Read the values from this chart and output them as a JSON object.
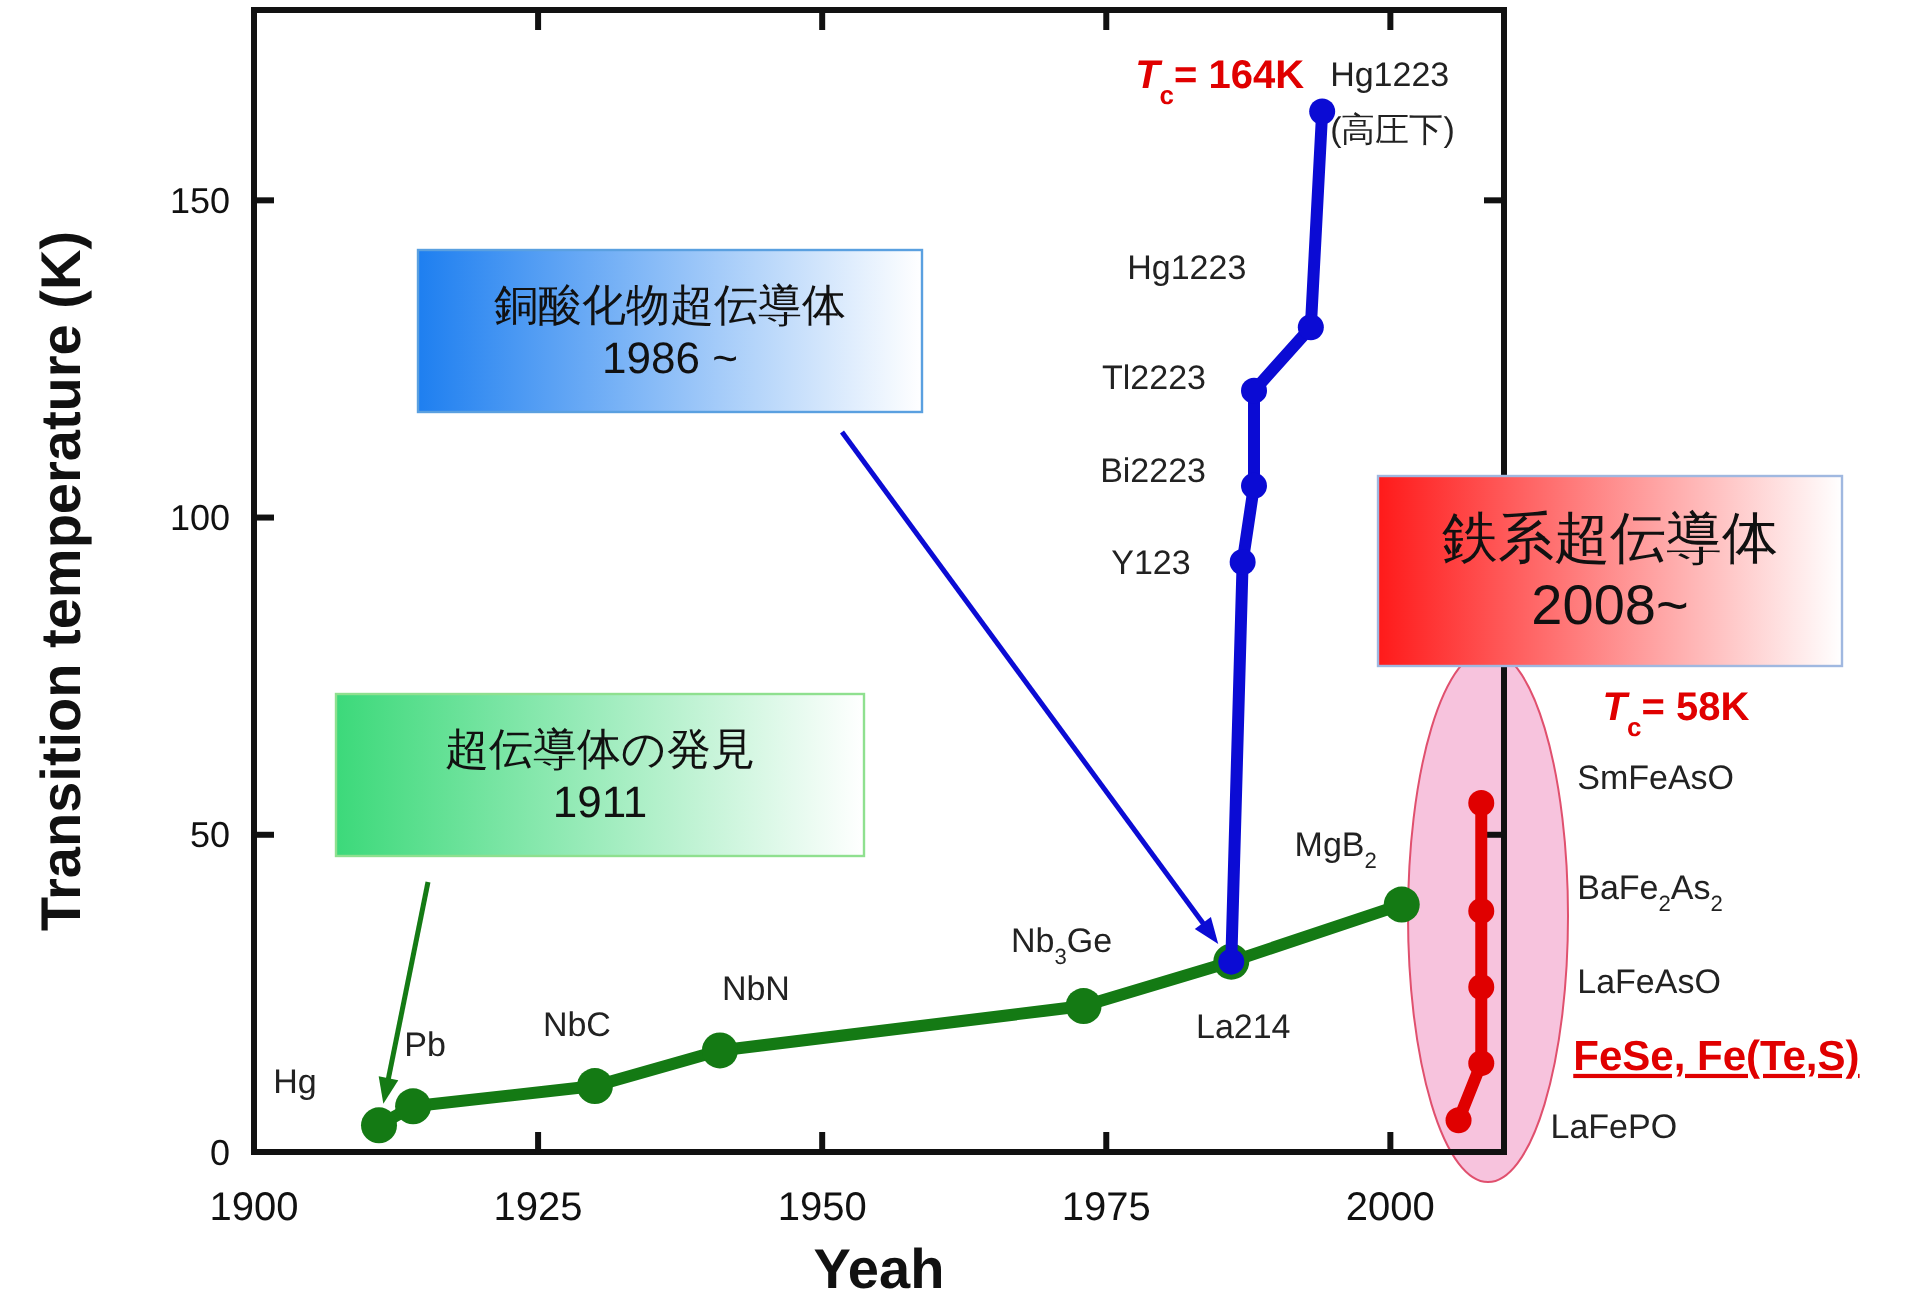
{
  "chart_data": {
    "type": "line",
    "xlabel": "Yeah",
    "ylabel": "Transition temperature (K)",
    "xlim": [
      1900,
      2010
    ],
    "ylim": [
      0,
      180
    ],
    "xticks": [
      1900,
      1925,
      1950,
      1975,
      2000
    ],
    "yticks": [
      0,
      50,
      100,
      150
    ],
    "marker": "circle",
    "line_style": "solid",
    "grid": false,
    "series": [
      {
        "color": "#147a14",
        "x": [
          1911,
          1914,
          1930,
          1941,
          1973,
          1986,
          2001
        ],
        "values": [
          4.2,
          7.2,
          10.4,
          16,
          23,
          30,
          39
        ]
      },
      {
        "color": "#0b0bd4",
        "x": [
          1986,
          1987,
          1988,
          1988,
          1993,
          1994
        ],
        "values": [
          30,
          93,
          105,
          120,
          130,
          164
        ]
      },
      {
        "color": "#e00000",
        "x": [
          2006,
          2008,
          2008,
          2008,
          2008
        ],
        "values": [
          5,
          14,
          26,
          38,
          55
        ]
      }
    ],
    "annotations": [
      "超伝導体の発見\n1911",
      "銅酸化物超伝導体\n1986 ~",
      "鉄系超伝導体\n2008~",
      {
        "text": "*T*$_{c}$= 164K",
        "x": 1994,
        "y": 164
      },
      "*T*$_{c}$= 58K",
      {
        "text": "Hg",
        "x": 1911,
        "y": 4.2
      },
      {
        "text": "Pb",
        "x": 1914,
        "y": 7.2
      },
      {
        "text": "NbC",
        "x": 1930,
        "y": 10.4
      },
      {
        "text": "NbN",
        "x": 1941,
        "y": 16
      },
      {
        "text": "Nb$_{3}$Ge",
        "x": 1973,
        "y": 23
      },
      {
        "text": "La214",
        "x": 1986,
        "y": 30
      },
      {
        "text": "MgB$_{2}$",
        "x": 2001,
        "y": 39
      },
      {
        "text": "Y123",
        "x": 1987,
        "y": 93
      },
      {
        "text": "Bi2223",
        "x": 1988,
        "y": 105
      },
      {
        "text": "Tl2223",
        "x": 1988,
        "y": 120
      },
      {
        "text": "Hg1223",
        "x": 1993,
        "y": 130
      },
      {
        "text": "Hg1223\n(高圧下)",
        "x": 1994,
        "y": 164
      },
      {
        "text": "SmFeAsO",
        "x": 2008,
        "y": 55
      },
      {
        "text": "BaFe$_{2}$As$_{2}$",
        "x": 2008,
        "y": 38
      },
      {
        "text": "LaFeAsO",
        "x": 2008,
        "y": 26
      },
      {
        "text": "FeSe, Fe(Te,S)",
        "x": 2008,
        "y": 14
      },
      {
        "text": "LaFePO",
        "x": 2006,
        "y": 5
      }
    ]
  }
}
